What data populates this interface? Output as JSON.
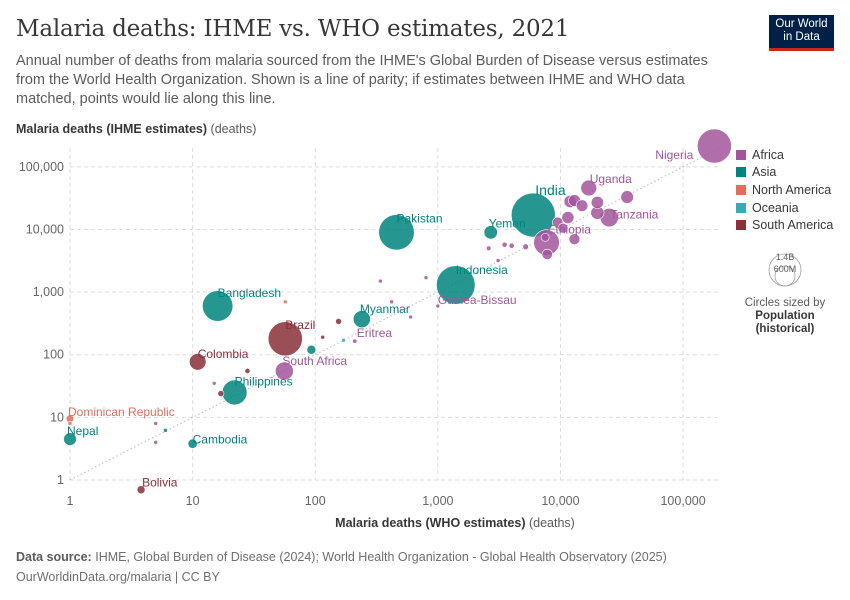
{
  "header": {
    "title": "Malaria deaths: IHME vs. WHO estimates, 2021",
    "subtitle": "Annual number of deaths from malaria sourced from the IHME's Global Burden of Disease versus estimates from the World Health Organization. Shown is a line of parity; if estimates between IHME and WHO data matched, points would lie along this line."
  },
  "logo": {
    "line1": "Our World",
    "line2": "in Data"
  },
  "axes": {
    "y_name": "Malaria deaths (IHME estimates)",
    "y_unit": "(deaths)",
    "x_name": "Malaria deaths (WHO estimates)",
    "x_unit": "(deaths)"
  },
  "legend": {
    "items": [
      {
        "label": "Africa",
        "color": "#a2559c"
      },
      {
        "label": "Asia",
        "color": "#00847e"
      },
      {
        "label": "North America",
        "color": "#e56e5a"
      },
      {
        "label": "Oceania",
        "color": "#38aaba"
      },
      {
        "label": "South America",
        "color": "#883039"
      }
    ],
    "size_key": {
      "max": "1.4B",
      "mid": "600M",
      "caption": "Circles sized by",
      "variable": "Population",
      "variable_note": "(historical)"
    }
  },
  "footer": {
    "source_label": "Data source:",
    "source_text": "IHME, Global Burden of Disease (2024); World Health Organization - Global Health Observatory (2025)",
    "url_text": "OurWorldinData.org/malaria | CC BY"
  },
  "chart_data": {
    "type": "scatter",
    "x_scale": "log",
    "y_scale": "log",
    "xlim": [
      1,
      200000
    ],
    "ylim": [
      1,
      200000
    ],
    "x_ticks": [
      1,
      10,
      100,
      1000,
      10000,
      100000
    ],
    "y_ticks": [
      1,
      10,
      100,
      1000,
      10000,
      100000
    ],
    "x_tick_labels": [
      "1",
      "10",
      "100",
      "1,000",
      "10,000",
      "100,000"
    ],
    "y_tick_labels": [
      "1",
      "10",
      "100",
      "1,000",
      "10,000",
      "100,000"
    ],
    "grid": true,
    "parity_line": true,
    "legend_position": "right",
    "points": [
      {
        "label": "Nigeria",
        "continent": "Africa",
        "x": 180000,
        "y": 215000,
        "pop": 213
      },
      {
        "label": "India",
        "continent": "Asia",
        "x": 6000,
        "y": 17000,
        "pop": 1400
      },
      {
        "label": "Uganda",
        "continent": "Africa",
        "x": 17000,
        "y": 46000,
        "pop": 46
      },
      {
        "label": "Tanzania",
        "continent": "Africa",
        "x": 25000,
        "y": 15500,
        "pop": 62
      },
      {
        "label": "Ethiopia",
        "continent": "Africa",
        "x": 7700,
        "y": 6200,
        "pop": 120
      },
      {
        "label": "Pakistan",
        "continent": "Asia",
        "x": 460,
        "y": 9000,
        "pop": 230
      },
      {
        "label": "Yemen",
        "continent": "Asia",
        "x": 2700,
        "y": 9000,
        "pop": 33
      },
      {
        "label": "Indonesia",
        "continent": "Asia",
        "x": 1400,
        "y": 1300,
        "pop": 273
      },
      {
        "label": "Guinea-Bissau",
        "continent": "Africa",
        "x": 1000,
        "y": 600,
        "pop": 2
      },
      {
        "label": "Bangladesh",
        "continent": "Asia",
        "x": 16,
        "y": 600,
        "pop": 170
      },
      {
        "label": "Myanmar",
        "continent": "Asia",
        "x": 240,
        "y": 370,
        "pop": 54
      },
      {
        "label": "Brazil",
        "continent": "South America",
        "x": 57,
        "y": 180,
        "pop": 214
      },
      {
        "label": "Eritrea",
        "continent": "Africa",
        "x": 210,
        "y": 165,
        "pop": 3.6
      },
      {
        "label": "Colombia",
        "continent": "South America",
        "x": 11,
        "y": 77,
        "pop": 51
      },
      {
        "label": "South Africa",
        "continent": "Africa",
        "x": 56,
        "y": 55,
        "pop": 60
      },
      {
        "label": "Philippines",
        "continent": "Asia",
        "x": 22,
        "y": 25,
        "pop": 113
      },
      {
        "label": "Dominican Republic",
        "continent": "North America",
        "x": 1,
        "y": 9.5,
        "pop": 11
      },
      {
        "label": "Nepal",
        "continent": "Asia",
        "x": 1,
        "y": 4.5,
        "pop": 30
      },
      {
        "label": "Cambodia",
        "continent": "Asia",
        "x": 10,
        "y": 3.8,
        "pop": 16
      },
      {
        "label": "Bolivia",
        "continent": "South America",
        "x": 3.8,
        "y": 0.7,
        "pop": 12
      },
      {
        "label": "",
        "continent": "Africa",
        "x": 35000,
        "y": 33000,
        "pop": 30
      },
      {
        "label": "",
        "continent": "Africa",
        "x": 20000,
        "y": 27000,
        "pop": 28
      },
      {
        "label": "",
        "continent": "Africa",
        "x": 12000,
        "y": 28000,
        "pop": 28
      },
      {
        "label": "",
        "continent": "Africa",
        "x": 15000,
        "y": 24000,
        "pop": 25
      },
      {
        "label": "",
        "continent": "Africa",
        "x": 13000,
        "y": 29000,
        "pop": 26
      },
      {
        "label": "",
        "continent": "Africa",
        "x": 11500,
        "y": 15500,
        "pop": 27
      },
      {
        "label": "",
        "continent": "Africa",
        "x": 20000,
        "y": 18500,
        "pop": 32
      },
      {
        "label": "",
        "continent": "Africa",
        "x": 9500,
        "y": 13000,
        "pop": 20
      },
      {
        "label": "",
        "continent": "Africa",
        "x": 10500,
        "y": 10500,
        "pop": 18
      },
      {
        "label": "",
        "continent": "Africa",
        "x": 13000,
        "y": 7000,
        "pop": 22
      },
      {
        "label": "",
        "continent": "Africa",
        "x": 7500,
        "y": 7500,
        "pop": 12
      },
      {
        "label": "",
        "continent": "Africa",
        "x": 7800,
        "y": 4000,
        "pop": 20
      },
      {
        "label": "",
        "continent": "Africa",
        "x": 5200,
        "y": 5300,
        "pop": 6
      },
      {
        "label": "",
        "continent": "Africa",
        "x": 4000,
        "y": 5500,
        "pop": 5
      },
      {
        "label": "",
        "continent": "Africa",
        "x": 3500,
        "y": 5700,
        "pop": 5
      },
      {
        "label": "",
        "continent": "Africa",
        "x": 2600,
        "y": 5000,
        "pop": 4
      },
      {
        "label": "",
        "continent": "Africa",
        "x": 3100,
        "y": 3200,
        "pop": 3
      },
      {
        "label": "",
        "continent": "Africa",
        "x": 800,
        "y": 1700,
        "pop": 3
      },
      {
        "label": "",
        "continent": "Africa",
        "x": 340,
        "y": 1500,
        "pop": 2.5
      },
      {
        "label": "",
        "continent": "Africa",
        "x": 420,
        "y": 700,
        "pop": 2
      },
      {
        "label": "",
        "continent": "Africa",
        "x": 600,
        "y": 400,
        "pop": 1.5
      },
      {
        "label": "",
        "continent": "Africa",
        "x": 5,
        "y": 8,
        "pop": 1
      },
      {
        "label": "",
        "continent": "Africa",
        "x": 5,
        "y": 4,
        "pop": 1
      },
      {
        "label": "",
        "continent": "Africa",
        "x": 15,
        "y": 35,
        "pop": 2
      },
      {
        "label": "",
        "continent": "Asia",
        "x": 93,
        "y": 120,
        "pop": 15
      },
      {
        "label": "",
        "continent": "Asia",
        "x": 6,
        "y": 6.2,
        "pop": 2
      },
      {
        "label": "",
        "continent": "Oceania",
        "x": 170,
        "y": 170,
        "pop": 3
      },
      {
        "label": "",
        "continent": "North America",
        "x": 57,
        "y": 700,
        "pop": 2
      },
      {
        "label": "",
        "continent": "North America",
        "x": 1,
        "y": 8,
        "pop": 1
      },
      {
        "label": "",
        "continent": "South America",
        "x": 155,
        "y": 340,
        "pop": 7
      },
      {
        "label": "",
        "continent": "South America",
        "x": 28,
        "y": 55,
        "pop": 5
      },
      {
        "label": "",
        "continent": "South America",
        "x": 17,
        "y": 24,
        "pop": 7
      },
      {
        "label": "",
        "continent": "South America",
        "x": 115,
        "y": 190,
        "pop": 3
      }
    ]
  }
}
